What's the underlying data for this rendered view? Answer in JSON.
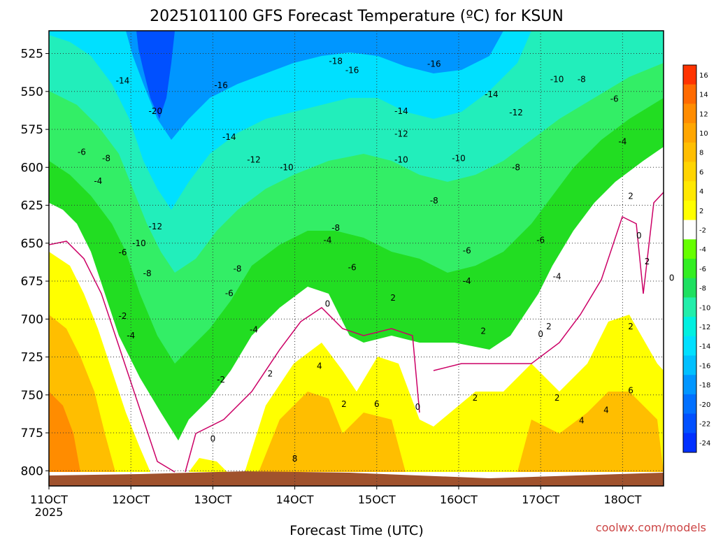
{
  "chart_data": {
    "type": "heatmap",
    "title": "2025101100 GFS Forecast Temperature (ºC) for KSUN",
    "xlabel": "Forecast Time (UTC)",
    "ylabel": "",
    "credit": "coolwx.com/models",
    "x_ticks": [
      {
        "day": 11,
        "label": "11OCT",
        "sublabel": "2025"
      },
      {
        "day": 12,
        "label": "12OCT",
        "sublabel": ""
      },
      {
        "day": 13,
        "label": "13OCT",
        "sublabel": ""
      },
      {
        "day": 14,
        "label": "14OCT",
        "sublabel": ""
      },
      {
        "day": 15,
        "label": "15OCT",
        "sublabel": ""
      },
      {
        "day": 16,
        "label": "16OCT",
        "sublabel": ""
      },
      {
        "day": 17,
        "label": "17OCT",
        "sublabel": ""
      },
      {
        "day": 18,
        "label": "18OCT",
        "sublabel": ""
      }
    ],
    "x_range_days": [
      11.0,
      18.5
    ],
    "y_ticks": [
      525,
      550,
      575,
      600,
      625,
      650,
      675,
      700,
      725,
      750,
      775,
      800
    ],
    "y_range_hpa": [
      510,
      810
    ],
    "grid": true,
    "legend_placement": "right",
    "colorbar": {
      "tick_labels": [
        "16",
        "14",
        "12",
        "10",
        "8",
        "6",
        "4",
        "2",
        "-2",
        "-4",
        "-6",
        "-8",
        "-10",
        "-12",
        "-14",
        "-16",
        "-18",
        "-20",
        "-22",
        "-24"
      ],
      "colors": [
        "#ff3300",
        "#ff6a00",
        "#ff8c00",
        "#ffa600",
        "#ffbe00",
        "#ffd400",
        "#ffe800",
        "#ffff00",
        "#ffffff",
        "#66ff00",
        "#33ee22",
        "#1ee060",
        "#22eeaa",
        "#00f0e0",
        "#00e0ff",
        "#00c0ff",
        "#0096ff",
        "#0070ff",
        "#0050ff",
        "#0030ff"
      ]
    },
    "contour_labels": [
      {
        "text": "-18",
        "day": 14.5,
        "p": 530
      },
      {
        "text": "-16",
        "day": 14.7,
        "p": 536
      },
      {
        "text": "-16",
        "day": 15.7,
        "p": 532
      },
      {
        "text": "-16",
        "day": 13.1,
        "p": 546
      },
      {
        "text": "-14",
        "day": 11.9,
        "p": 543
      },
      {
        "text": "-20",
        "day": 12.3,
        "p": 563
      },
      {
        "text": "-14",
        "day": 15.3,
        "p": 563
      },
      {
        "text": "-14",
        "day": 16.4,
        "p": 552
      },
      {
        "text": "-12",
        "day": 16.7,
        "p": 564
      },
      {
        "text": "-10",
        "day": 17.2,
        "p": 542
      },
      {
        "text": "-8",
        "day": 17.5,
        "p": 542
      },
      {
        "text": "-6",
        "day": 17.9,
        "p": 555
      },
      {
        "text": "-14",
        "day": 13.2,
        "p": 580
      },
      {
        "text": "-12",
        "day": 15.3,
        "p": 578
      },
      {
        "text": "-12",
        "day": 13.5,
        "p": 595
      },
      {
        "text": "-10",
        "day": 13.9,
        "p": 600
      },
      {
        "text": "-10",
        "day": 15.3,
        "p": 595
      },
      {
        "text": "-10",
        "day": 16.0,
        "p": 594
      },
      {
        "text": "-8",
        "day": 16.7,
        "p": 600
      },
      {
        "text": "-4",
        "day": 18.0,
        "p": 583
      },
      {
        "text": "-6",
        "day": 11.4,
        "p": 590
      },
      {
        "text": "-8",
        "day": 11.7,
        "p": 594
      },
      {
        "text": "-4",
        "day": 11.6,
        "p": 609
      },
      {
        "text": "-8",
        "day": 15.7,
        "p": 622
      },
      {
        "text": "-12",
        "day": 12.3,
        "p": 639
      },
      {
        "text": "-10",
        "day": 12.1,
        "p": 650
      },
      {
        "text": "-6",
        "day": 11.9,
        "p": 656
      },
      {
        "text": "-8",
        "day": 14.5,
        "p": 640
      },
      {
        "text": "-4",
        "day": 14.4,
        "p": 648
      },
      {
        "text": "-8",
        "day": 12.2,
        "p": 670
      },
      {
        "text": "-8",
        "day": 13.3,
        "p": 667
      },
      {
        "text": "-6",
        "day": 14.7,
        "p": 666
      },
      {
        "text": "-6",
        "day": 16.1,
        "p": 655
      },
      {
        "text": "-6",
        "day": 17.0,
        "p": 648
      },
      {
        "text": "-4",
        "day": 16.1,
        "p": 675
      },
      {
        "text": "-4",
        "day": 17.2,
        "p": 672
      },
      {
        "text": "-6",
        "day": 13.2,
        "p": 683
      },
      {
        "text": "0",
        "day": 18.2,
        "p": 645
      },
      {
        "text": "2",
        "day": 18.1,
        "p": 619
      },
      {
        "text": "2",
        "day": 18.3,
        "p": 662
      },
      {
        "text": "0",
        "day": 18.6,
        "p": 673
      },
      {
        "text": "0",
        "day": 14.4,
        "p": 690
      },
      {
        "text": "2",
        "day": 15.2,
        "p": 686
      },
      {
        "text": "-2",
        "day": 11.9,
        "p": 698
      },
      {
        "text": "-4",
        "day": 12.0,
        "p": 711
      },
      {
        "text": "-4",
        "day": 13.5,
        "p": 707
      },
      {
        "text": "2",
        "day": 16.3,
        "p": 708
      },
      {
        "text": "0",
        "day": 17.0,
        "p": 710
      },
      {
        "text": "2",
        "day": 17.1,
        "p": 705
      },
      {
        "text": "2",
        "day": 18.1,
        "p": 705
      },
      {
        "text": "-2",
        "day": 13.1,
        "p": 740
      },
      {
        "text": "2",
        "day": 13.7,
        "p": 736
      },
      {
        "text": "4",
        "day": 14.3,
        "p": 731
      },
      {
        "text": "2",
        "day": 14.6,
        "p": 756
      },
      {
        "text": "6",
        "day": 15.0,
        "p": 756
      },
      {
        "text": "0",
        "day": 15.5,
        "p": 758
      },
      {
        "text": "2",
        "day": 16.2,
        "p": 752
      },
      {
        "text": "2",
        "day": 17.2,
        "p": 752
      },
      {
        "text": "4",
        "day": 17.5,
        "p": 767
      },
      {
        "text": "4",
        "day": 17.8,
        "p": 760
      },
      {
        "text": "6",
        "day": 18.1,
        "p": 747
      },
      {
        "text": "0",
        "day": 13.0,
        "p": 779
      },
      {
        "text": "8",
        "day": 14.0,
        "p": 792
      }
    ]
  }
}
